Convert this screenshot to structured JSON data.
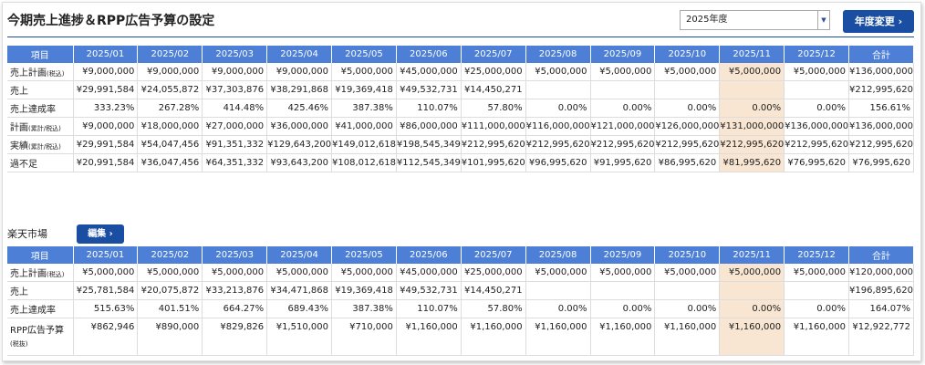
{
  "header": {
    "title": "今期売上進捗＆RPP広告予算の設定",
    "year_select": "2025年度",
    "button": "年度変更"
  },
  "table1": {
    "highlight_column": 10,
    "columns": [
      "項目",
      "2025/01",
      "2025/02",
      "2025/03",
      "2025/04",
      "2025/05",
      "2025/06",
      "2025/07",
      "2025/08",
      "2025/09",
      "2025/10",
      "2025/11",
      "2025/12",
      "合計"
    ],
    "rows": [
      {
        "label": "売上計画",
        "note": "(税込)",
        "cells": [
          "¥9,000,000",
          "¥9,000,000",
          "¥9,000,000",
          "¥9,000,000",
          "¥5,000,000",
          "¥45,000,000",
          "¥25,000,000",
          "¥5,000,000",
          "¥5,000,000",
          "¥5,000,000",
          "¥5,000,000",
          "¥5,000,000",
          "¥136,000,000"
        ]
      },
      {
        "label": "売上",
        "cells": [
          "¥29,991,584",
          "¥24,055,872",
          "¥37,303,876",
          "¥38,291,868",
          "¥19,369,418",
          "¥49,532,731",
          "¥14,450,271",
          null,
          null,
          null,
          null,
          null,
          "¥212,995,620"
        ]
      },
      {
        "label": "売上達成率",
        "cells": [
          "333.23%",
          "267.28%",
          "414.48%",
          "425.46%",
          "387.38%",
          "110.07%",
          "57.80%",
          "0.00%",
          "0.00%",
          "0.00%",
          "0.00%",
          "0.00%",
          "156.61%"
        ]
      },
      {
        "label": "計画",
        "note": "(累計/税込)",
        "cells": [
          "¥9,000,000",
          "¥18,000,000",
          "¥27,000,000",
          "¥36,000,000",
          "¥41,000,000",
          "¥86,000,000",
          "¥111,000,000",
          "¥116,000,000",
          "¥121,000,000",
          "¥126,000,000",
          "¥131,000,000",
          "¥136,000,000",
          "¥136,000,000"
        ]
      },
      {
        "label": "実績",
        "note": "(累計/税込)",
        "cells": [
          "¥29,991,584",
          "¥54,047,456",
          "¥91,351,332",
          "¥129,643,200",
          "¥149,012,618",
          "¥198,545,349",
          "¥212,995,620",
          "¥212,995,620",
          "¥212,995,620",
          "¥212,995,620",
          "¥212,995,620",
          "¥212,995,620",
          "¥212,995,620"
        ]
      },
      {
        "label": "過不足",
        "cells": [
          "¥20,991,584",
          "¥36,047,456",
          "¥64,351,332",
          "¥93,643,200",
          "¥108,012,618",
          "¥112,545,349",
          "¥101,995,620",
          "¥96,995,620",
          "¥91,995,620",
          "¥86,995,620",
          "¥81,995,620",
          "¥76,995,620",
          "¥76,995,620"
        ]
      }
    ]
  },
  "section2": {
    "title": "楽天市場",
    "button": "編集"
  },
  "table2": {
    "highlight_column": 10,
    "columns": [
      "項目",
      "2025/01",
      "2025/02",
      "2025/03",
      "2025/04",
      "2025/05",
      "2025/06",
      "2025/07",
      "2025/08",
      "2025/09",
      "2025/10",
      "2025/11",
      "2025/12",
      "合計"
    ],
    "rows": [
      {
        "label": "売上計画",
        "note": "(税込)",
        "cells": [
          "¥5,000,000",
          "¥5,000,000",
          "¥5,000,000",
          "¥5,000,000",
          "¥5,000,000",
          "¥45,000,000",
          "¥25,000,000",
          "¥5,000,000",
          "¥5,000,000",
          "¥5,000,000",
          "¥5,000,000",
          "¥5,000,000",
          "¥120,000,000"
        ]
      },
      {
        "label": "売上",
        "cells": [
          "¥25,781,584",
          "¥20,075,872",
          "¥33,213,876",
          "¥34,471,868",
          "¥19,369,418",
          "¥49,532,731",
          "¥14,450,271",
          null,
          null,
          null,
          null,
          null,
          "¥196,895,620"
        ]
      },
      {
        "label": "売上達成率",
        "cells": [
          "515.63%",
          "401.51%",
          "664.27%",
          "689.43%",
          "387.38%",
          "110.07%",
          "57.80%",
          "0.00%",
          "0.00%",
          "0.00%",
          "0.00%",
          "0.00%",
          "164.07%"
        ]
      },
      {
        "label": "RPP広告予算",
        "note": "(税抜)",
        "cells": [
          "¥862,946",
          "¥890,000",
          "¥829,826",
          "¥1,510,000",
          "¥710,000",
          "¥1,160,000",
          "¥1,160,000",
          "¥1,160,000",
          "¥1,160,000",
          "¥1,160,000",
          "¥1,160,000",
          "¥1,160,000",
          "¥12,922,772"
        ]
      }
    ]
  }
}
